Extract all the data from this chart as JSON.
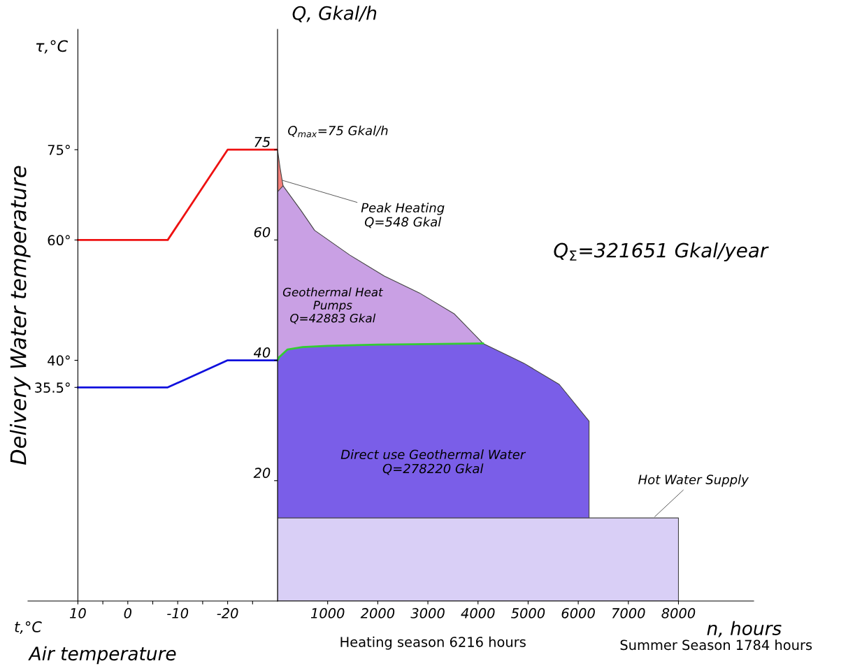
{
  "chart_data": [
    {
      "type": "line",
      "ylabel": "Delivery Water temperature",
      "xlabel": "t,°C",
      "annotations": [
        "τ,°C",
        "Air temperature"
      ],
      "x": [
        10,
        -8,
        -20,
        -30
      ],
      "series": [
        {
          "color": "#ee1111",
          "values": [
            60,
            60,
            75,
            75
          ]
        },
        {
          "color": "#1010dd",
          "values": [
            35.5,
            35.5,
            40,
            40
          ]
        }
      ],
      "xlim": [
        20,
        -30
      ],
      "xticks": [
        10,
        0,
        -10,
        -20,
        {
          "value": 5,
          "label": null
        },
        {
          "value": -5,
          "label": null
        },
        {
          "value": -15,
          "label": null
        },
        {
          "value": -25,
          "label": null
        }
      ],
      "ylim": [
        0,
        95
      ],
      "yticks": [
        {
          "value": 35.5,
          "label": "35.5°"
        },
        {
          "value": 40,
          "label": "40°"
        },
        {
          "value": 60,
          "label": "60°"
        },
        {
          "value": 75,
          "label": "75°"
        }
      ],
      "grid": false,
      "legend": false
    },
    {
      "type": "area",
      "ylabel": "Q, Gkal/h",
      "xlabel": "n, hours",
      "annotations": [
        "Q$_{max}$=75 Gkal/h",
        {
          "text": "Peak Heating\nQ=548 Gkal",
          "x": 60,
          "y": 70
        },
        "Q$_{Σ}$=321651 Gkal/year",
        "Geothermal Heat\nPumps\nQ=42883 Gkal",
        "Direct use Geothermal Water\nQ=278220 Gkal",
        {
          "text": "Hot Water Supply",
          "x": 7500,
          "y": 13.8
        },
        "Heating season 6216 hours",
        "Summer Season 1784 hours"
      ],
      "series": [
        {
          "color": "#f4807c",
          "x": [
            0,
            50,
            110
          ],
          "values": [
            75,
            72,
            69
          ]
        },
        {
          "color": "#c9a0e4",
          "x": [
            0,
            110,
            460,
            740,
            1440,
            2130,
            2830,
            3530,
            4100
          ],
          "values": [
            68,
            69,
            65,
            61.6,
            57.5,
            54,
            51.2,
            47.7,
            42.8
          ]
        },
        {
          "color": "#7a5ee8",
          "x": [
            0,
            30,
            200,
            500,
            1000,
            2000,
            3000,
            4100,
            4920,
            5620,
            6216
          ],
          "values": [
            40,
            40.5,
            41.8,
            42.2,
            42.4,
            42.6,
            42.7,
            42.8,
            39.5,
            36,
            29.9
          ]
        },
        {
          "color": "#d9cff6",
          "x": [
            0,
            8000
          ],
          "values": [
            13.8,
            13.8
          ]
        },
        {
          "type": "line",
          "color": "#33cc33",
          "x": [
            0,
            30,
            200,
            500,
            1000,
            2000,
            3000,
            4100
          ],
          "values": [
            40,
            40.5,
            41.8,
            42.2,
            42.4,
            42.6,
            42.7,
            42.8
          ]
        }
      ],
      "xlim": [
        0,
        9500
      ],
      "xticks": [
        1000,
        2000,
        3000,
        4000,
        5000,
        6000,
        7000,
        8000
      ],
      "ylim": [
        0,
        95
      ],
      "yticks": [
        20,
        40,
        60,
        75
      ],
      "grid": false,
      "legend": false
    }
  ]
}
